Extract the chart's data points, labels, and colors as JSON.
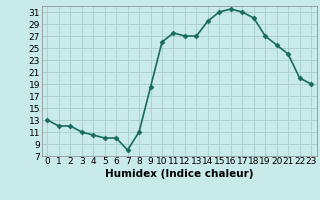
{
  "x": [
    0,
    1,
    2,
    3,
    4,
    5,
    6,
    7,
    8,
    9,
    10,
    11,
    12,
    13,
    14,
    15,
    16,
    17,
    18,
    19,
    20,
    21,
    22,
    23
  ],
  "y": [
    13,
    12,
    12,
    11,
    10.5,
    10,
    10,
    8,
    11,
    18.5,
    26,
    27.5,
    27,
    27,
    29.5,
    31,
    31.5,
    31,
    30,
    27,
    25.5,
    24,
    20,
    19
  ],
  "line_color": "#1a6b5e",
  "marker": "D",
  "marker_size": 2.5,
  "bg_color": "#c8eae8",
  "grid_color": "#a8ceca",
  "xlabel": "Humidex (Indice chaleur)",
  "ylim": [
    7,
    32
  ],
  "xlim": [
    -0.5,
    23.5
  ],
  "yticks": [
    7,
    9,
    11,
    13,
    15,
    17,
    19,
    21,
    23,
    25,
    27,
    29,
    31
  ],
  "xticks": [
    0,
    1,
    2,
    3,
    4,
    5,
    6,
    7,
    8,
    9,
    10,
    11,
    12,
    13,
    14,
    15,
    16,
    17,
    18,
    19,
    20,
    21,
    22,
    23
  ],
  "xlabel_fontsize": 7.5,
  "tick_fontsize": 6.5,
  "line_width": 1.2
}
